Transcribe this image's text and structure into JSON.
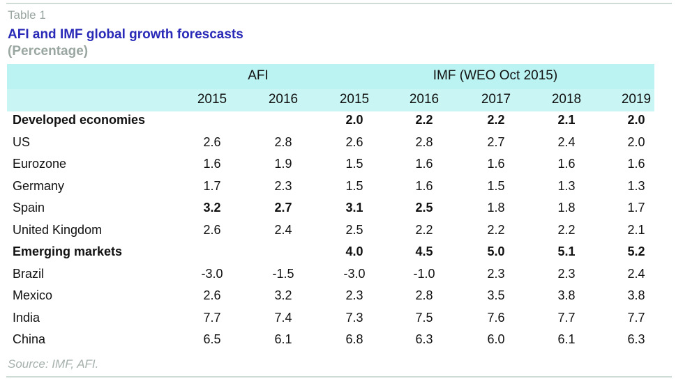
{
  "table_label": "Table 1",
  "title": "AFI and IMF global growth forescasts",
  "subtitle": "(Percentage)",
  "column_groups": [
    {
      "label": "AFI",
      "years": [
        "2015",
        "2016"
      ]
    },
    {
      "label": "IMF (WEO Oct 2015)",
      "years": [
        "2015",
        "2016",
        "2017",
        "2018",
        "2019"
      ]
    }
  ],
  "years": [
    "2015",
    "2016",
    "2015",
    "2016",
    "2017",
    "2018",
    "2019"
  ],
  "rows": [
    {
      "label": "Developed economies",
      "label_bold": true,
      "values": [
        "",
        "",
        "2.0",
        "2.2",
        "2.2",
        "2.1",
        "2.0"
      ],
      "bold": [
        false,
        false,
        true,
        true,
        true,
        true,
        true
      ]
    },
    {
      "label": "US",
      "label_bold": false,
      "values": [
        "2.6",
        "2.8",
        "2.6",
        "2.8",
        "2.7",
        "2.4",
        "2.0"
      ],
      "bold": [
        false,
        false,
        false,
        false,
        false,
        false,
        false
      ]
    },
    {
      "label": "Eurozone",
      "label_bold": false,
      "values": [
        "1.6",
        "1.9",
        "1.5",
        "1.6",
        "1.6",
        "1.6",
        "1.6"
      ],
      "bold": [
        false,
        false,
        false,
        false,
        false,
        false,
        false
      ]
    },
    {
      "label": "Germany",
      "label_bold": false,
      "values": [
        "1.7",
        "2.3",
        "1.5",
        "1.6",
        "1.5",
        "1.3",
        "1.3"
      ],
      "bold": [
        false,
        false,
        false,
        false,
        false,
        false,
        false
      ]
    },
    {
      "label": "Spain",
      "label_bold": false,
      "values": [
        "3.2",
        "2.7",
        "3.1",
        "2.5",
        "1.8",
        "1.8",
        "1.7"
      ],
      "bold": [
        true,
        true,
        true,
        true,
        false,
        false,
        false
      ]
    },
    {
      "label": "United Kingdom",
      "label_bold": false,
      "values": [
        "2.6",
        "2.4",
        "2.5",
        "2.2",
        "2.2",
        "2.2",
        "2.1"
      ],
      "bold": [
        false,
        false,
        false,
        false,
        false,
        false,
        false
      ]
    },
    {
      "label": "Emerging markets",
      "label_bold": true,
      "values": [
        "",
        "",
        "4.0",
        "4.5",
        "5.0",
        "5.1",
        "5.2"
      ],
      "bold": [
        false,
        false,
        true,
        true,
        true,
        true,
        true
      ]
    },
    {
      "label": "Brazil",
      "label_bold": false,
      "values": [
        "-3.0",
        "-1.5",
        "-3.0",
        "-1.0",
        "2.3",
        "2.3",
        "2.4"
      ],
      "bold": [
        false,
        false,
        false,
        false,
        false,
        false,
        false
      ]
    },
    {
      "label": "Mexico",
      "label_bold": false,
      "values": [
        "2.6",
        "3.2",
        "2.3",
        "2.8",
        "3.5",
        "3.8",
        "3.8"
      ],
      "bold": [
        false,
        false,
        false,
        false,
        false,
        false,
        false
      ]
    },
    {
      "label": "India",
      "label_bold": false,
      "values": [
        "7.7",
        "7.4",
        "7.3",
        "7.5",
        "7.6",
        "7.7",
        "7.7"
      ],
      "bold": [
        false,
        false,
        false,
        false,
        false,
        false,
        false
      ]
    },
    {
      "label": "China",
      "label_bold": false,
      "values": [
        "6.5",
        "6.1",
        "6.8",
        "6.3",
        "6.0",
        "6.1",
        "6.3"
      ],
      "bold": [
        false,
        false,
        false,
        false,
        false,
        false,
        false
      ]
    }
  ],
  "source": "Source: IMF, AFI.",
  "colors": {
    "title": "#2a2ab8",
    "muted": "#9aa6a0",
    "header_band": "#baf3f1"
  }
}
